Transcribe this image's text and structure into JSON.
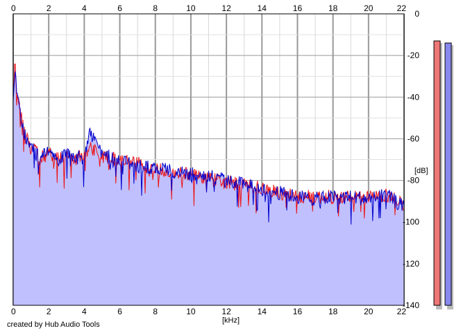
{
  "credit": "created by Hub Audio Tools",
  "chart_data": {
    "type": "area",
    "xlabel": "[kHz]",
    "ylabel": "[dB]",
    "xlim": [
      0,
      22
    ],
    "ylim": [
      -140,
      0
    ],
    "x_ticks": [
      "0",
      "2",
      "4",
      "6",
      "8",
      "10",
      "12",
      "14",
      "16",
      "18",
      "20",
      "22"
    ],
    "y_ticks": [
      "0",
      "-20",
      "-40",
      "-60",
      "-80",
      "-100",
      "-120",
      "-140"
    ],
    "grid": true,
    "series": [
      {
        "color": "#ee1111",
        "x": [
          0,
          0.1,
          0.2,
          0.4,
          0.6,
          0.8,
          1,
          1.2,
          1.5,
          2,
          2.5,
          3,
          3.5,
          4,
          4.3,
          5,
          6,
          7,
          8,
          9,
          10,
          11,
          12,
          13,
          14,
          15,
          16,
          17,
          18,
          19,
          20,
          21,
          22
        ],
        "values": [
          -40,
          -23,
          -35,
          -45,
          -55,
          -60,
          -63,
          -65,
          -70,
          -67,
          -69,
          -68,
          -69,
          -69,
          -63,
          -69,
          -70,
          -72,
          -75,
          -76,
          -77,
          -79,
          -81,
          -82,
          -84,
          -86,
          -88,
          -88,
          -88,
          -88,
          -88,
          -87,
          -91
        ]
      },
      {
        "color": "#0000cc",
        "x": [
          0,
          0.1,
          0.2,
          0.4,
          0.6,
          0.8,
          1,
          1.2,
          1.5,
          2,
          2.5,
          3,
          3.5,
          4,
          4.3,
          5,
          6,
          7,
          8,
          9,
          10,
          11,
          12,
          13,
          14,
          15,
          16,
          17,
          18,
          19,
          20,
          21,
          22
        ],
        "values": [
          -42,
          -26,
          -38,
          -48,
          -57,
          -62,
          -64,
          -66,
          -70,
          -66,
          -70,
          -68,
          -69,
          -69,
          -56,
          -68,
          -70,
          -73,
          -74,
          -76,
          -77,
          -78,
          -80,
          -82,
          -84,
          -86,
          -88,
          -89,
          -88,
          -88,
          -89,
          -87,
          -93
        ]
      }
    ],
    "fill_color": "#c0c0ff",
    "level_meters": [
      {
        "color": "#ee7777",
        "peak_db": -13
      },
      {
        "color": "#8888ee",
        "peak_db": -14
      }
    ]
  }
}
